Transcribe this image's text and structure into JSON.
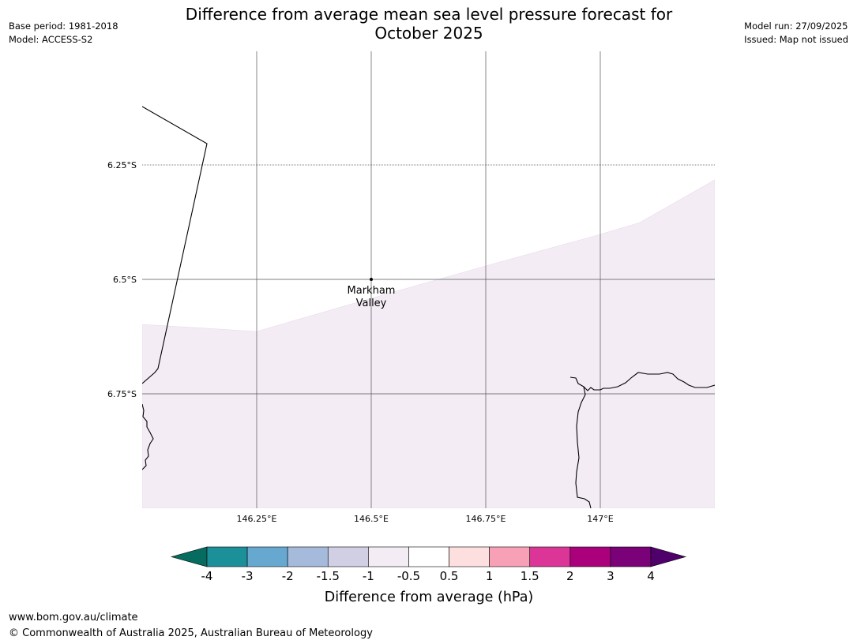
{
  "header": {
    "title_line1": "Difference from average mean sea level pressure forecast for",
    "title_line2": "October 2025",
    "base_period": "Base period: 1981-2018",
    "model": "Model: ACCESS-S2",
    "model_run": "Model run: 27/09/2025",
    "issued": "Issued: Map not issued"
  },
  "map": {
    "lat_labels": [
      "6.25°S",
      "6.5°S",
      "6.75°S"
    ],
    "lon_labels": [
      "146.25°E",
      "146.5°E",
      "146.75°E",
      "147°E"
    ],
    "place": {
      "name_line1": "Markham",
      "name_line2": "Valley"
    },
    "shaded_category": "-1 to -0.5",
    "shaded_color": "#f3ecf5"
  },
  "legend": {
    "title": "Difference from average (hPa)",
    "ticks": [
      "-4",
      "-3",
      "-2",
      "-1.5",
      "-1",
      "-0.5",
      "0.5",
      "1",
      "1.5",
      "2",
      "3",
      "4"
    ],
    "colors": [
      "#066c5f",
      "#1b9099",
      "#66a8d0",
      "#a6bbdc",
      "#d0cfe4",
      "#f3ecf5",
      "#ffffff",
      "#fddfe0",
      "#f7a0b6",
      "#dc3598",
      "#ab007c",
      "#7a0177",
      "#4f006a"
    ]
  },
  "footer": {
    "url": "www.bom.gov.au/climate",
    "copyright": "© Commonwealth of Australia 2025, Australian Bureau of Meteorology"
  }
}
